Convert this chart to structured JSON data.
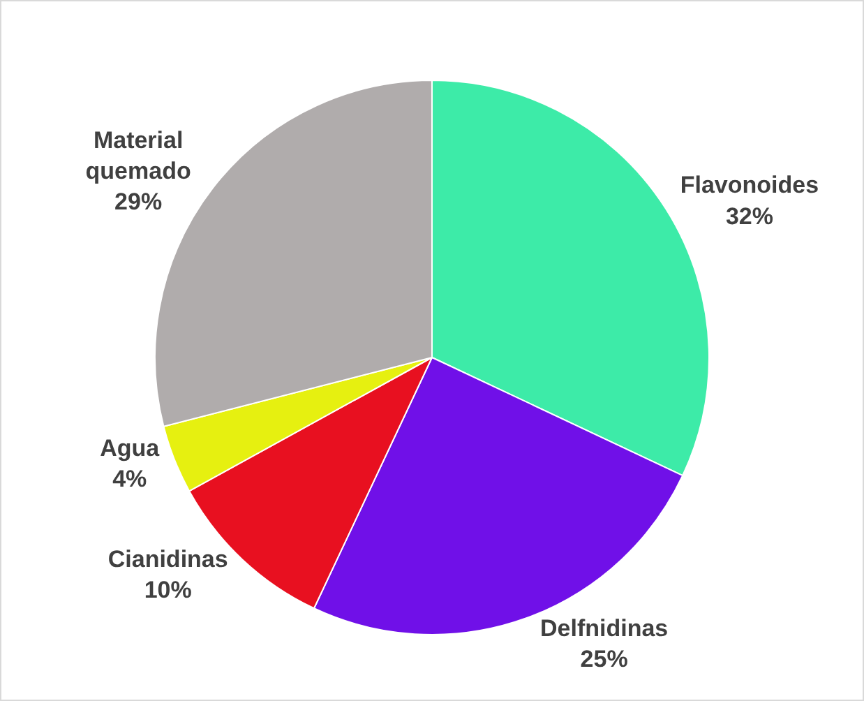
{
  "chart_data": {
    "type": "pie",
    "categories": [
      "Flavonoides",
      "Delfnidinas",
      "Cianidinas",
      "Agua",
      "Material quemado"
    ],
    "values": [
      32,
      25,
      10,
      4,
      29
    ],
    "value_labels": [
      "32%",
      "25%",
      "10%",
      "4%",
      "29%"
    ],
    "colors": [
      "#3deba8",
      "#7010e8",
      "#e81020",
      "#e6f010",
      "#b0acac"
    ],
    "legend": false
  }
}
